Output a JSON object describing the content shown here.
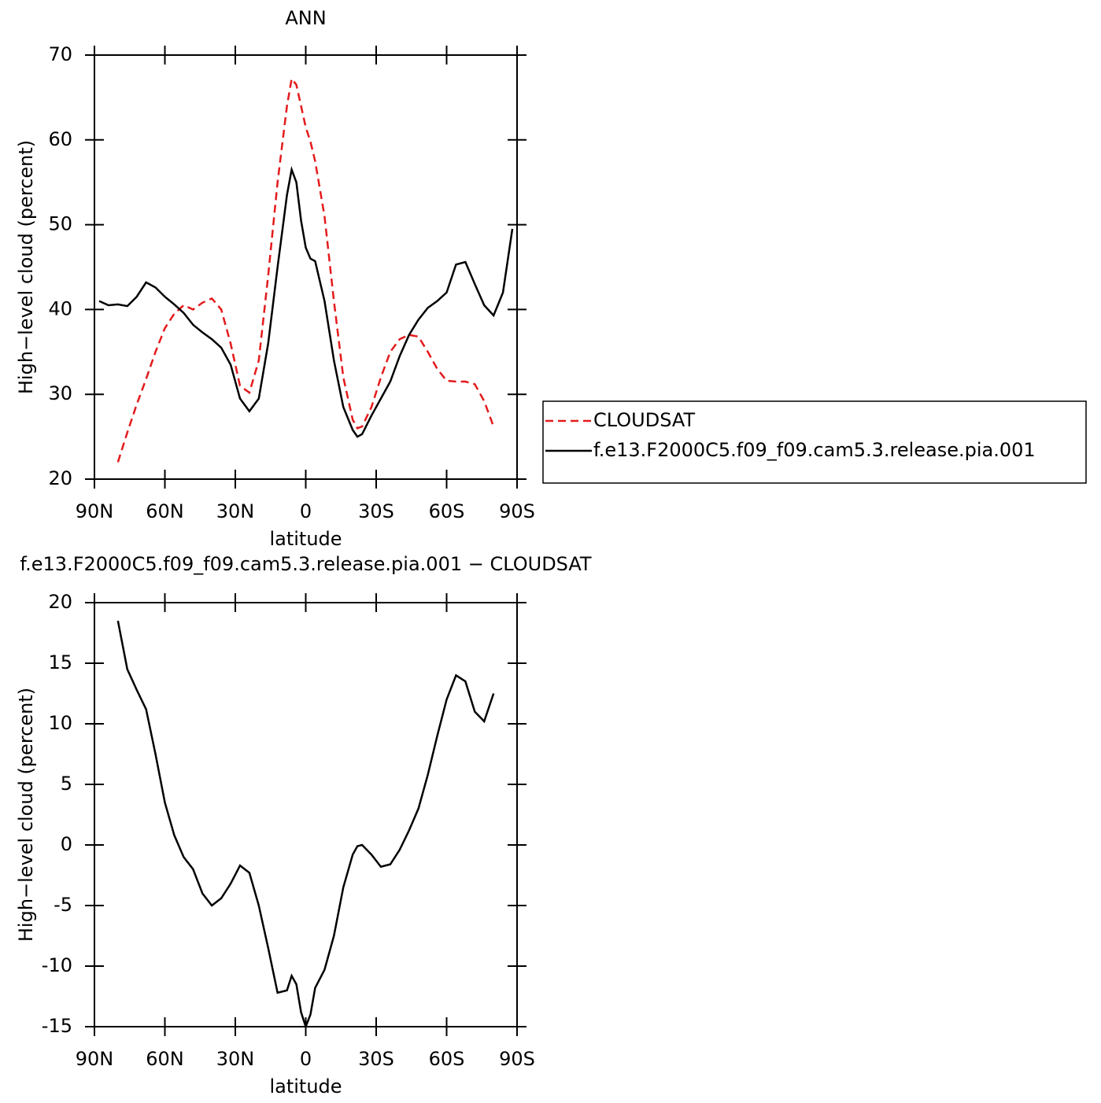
{
  "chart_data": [
    {
      "type": "line",
      "title": "ANN",
      "xlabel": "latitude",
      "ylabel": "High−level cloud (percent)",
      "x": [
        88,
        84,
        80,
        76,
        72,
        68,
        64,
        60,
        56,
        52,
        48,
        44,
        40,
        36,
        32,
        28,
        24,
        20,
        16,
        12,
        8,
        6,
        4,
        2,
        0,
        -2,
        -4,
        -8,
        -12,
        -16,
        -20,
        -22,
        -24,
        -28,
        -32,
        -36,
        -40,
        -44,
        -48,
        -52,
        -56,
        -60,
        -64,
        -68,
        -72,
        -76,
        -80,
        -84,
        -88
      ],
      "series": [
        {
          "name": "CLOUDSAT",
          "color": "#e41a1c",
          "linestyle": "dashed",
          "values": [
            null,
            null,
            22,
            25.5,
            28.8,
            31.8,
            35,
            37.8,
            39.5,
            40.5,
            40,
            40.8,
            41.3,
            40,
            36,
            31,
            30.2,
            34,
            44,
            55,
            64,
            67.2,
            66.5,
            64,
            61.5,
            59.8,
            57.5,
            51,
            41,
            32,
            27,
            26,
            26.2,
            28.5,
            32,
            35,
            36.5,
            37,
            36.8,
            35,
            33,
            31.6,
            31.5,
            31.5,
            31.2,
            29.2,
            26.2,
            null,
            null
          ]
        },
        {
          "name": "f.e13.F2000C5.f09_f09.cam5.3.release.pia.001",
          "color": "#000000",
          "linestyle": "solid",
          "values": [
            41,
            40.5,
            40.6,
            40.4,
            41.5,
            43.2,
            42.6,
            41.5,
            40.6,
            39.6,
            38.2,
            37.3,
            36.5,
            35.5,
            33.5,
            29.5,
            28,
            29.5,
            36,
            45,
            53.5,
            56.5,
            55,
            50.5,
            47.3,
            46,
            45.7,
            41,
            34,
            28.5,
            25.8,
            25,
            25.3,
            27.5,
            29.5,
            31.5,
            34.5,
            37,
            38.8,
            40.2,
            41,
            42,
            45.3,
            45.6,
            43,
            40.5,
            39.3,
            42,
            49.5
          ]
        }
      ],
      "xlim": [
        90,
        -90
      ],
      "xticks": [
        {
          "value": 90,
          "label": "90N"
        },
        {
          "value": 60,
          "label": "60N"
        },
        {
          "value": 30,
          "label": "30N"
        },
        0,
        {
          "value": -30,
          "label": "30S"
        },
        {
          "value": -60,
          "label": "60S"
        },
        {
          "value": -90,
          "label": "90S"
        }
      ],
      "ylim": [
        20,
        70
      ],
      "yticks": [
        20,
        30,
        40,
        50,
        60,
        70
      ],
      "legend": "right"
    },
    {
      "type": "line",
      "title": "f.e13.F2000C5.f09_f09.cam5.3.release.pia.001  −  CLOUDSAT",
      "xlabel": "latitude",
      "ylabel": "High−level cloud (percent)",
      "x": [
        88,
        84,
        80,
        76,
        72,
        68,
        64,
        60,
        56,
        52,
        48,
        44,
        40,
        36,
        32,
        28,
        24,
        20,
        16,
        12,
        8,
        6,
        4,
        2,
        0,
        -2,
        -4,
        -8,
        -12,
        -16,
        -20,
        -22,
        -24,
        -28,
        -32,
        -36,
        -40,
        -44,
        -48,
        -52,
        -56,
        -60,
        -64,
        -68,
        -72,
        -76,
        -80,
        -84,
        -88
      ],
      "series": [
        {
          "color": "#000000",
          "linestyle": "solid",
          "values": [
            null,
            null,
            18.5,
            14.5,
            12.8,
            11.2,
            7.5,
            3.5,
            0.8,
            -1,
            -2,
            -4,
            -5,
            -4.4,
            -3.2,
            -1.7,
            -2.3,
            -5,
            -8.5,
            -12.2,
            -12,
            -10.8,
            -11.5,
            -13.8,
            -15,
            -14,
            -11.8,
            -10.3,
            -7.5,
            -3.5,
            -0.8,
            -0.1,
            0,
            -0.8,
            -1.8,
            -1.6,
            -0.4,
            1.2,
            3,
            5.8,
            9,
            12,
            14,
            13.5,
            11,
            10.2,
            12.5,
            null,
            null
          ]
        }
      ],
      "xlim": [
        90,
        -90
      ],
      "xticks": [
        {
          "value": 90,
          "label": "90N"
        },
        {
          "value": 60,
          "label": "60N"
        },
        {
          "value": 30,
          "label": "30N"
        },
        0,
        {
          "value": -30,
          "label": "30S"
        },
        {
          "value": -60,
          "label": "60S"
        },
        {
          "value": -90,
          "label": "90S"
        }
      ],
      "ylim": [
        -15,
        20
      ],
      "yticks": [
        -15,
        -10,
        -5,
        0,
        5,
        10,
        15,
        20
      ]
    }
  ]
}
